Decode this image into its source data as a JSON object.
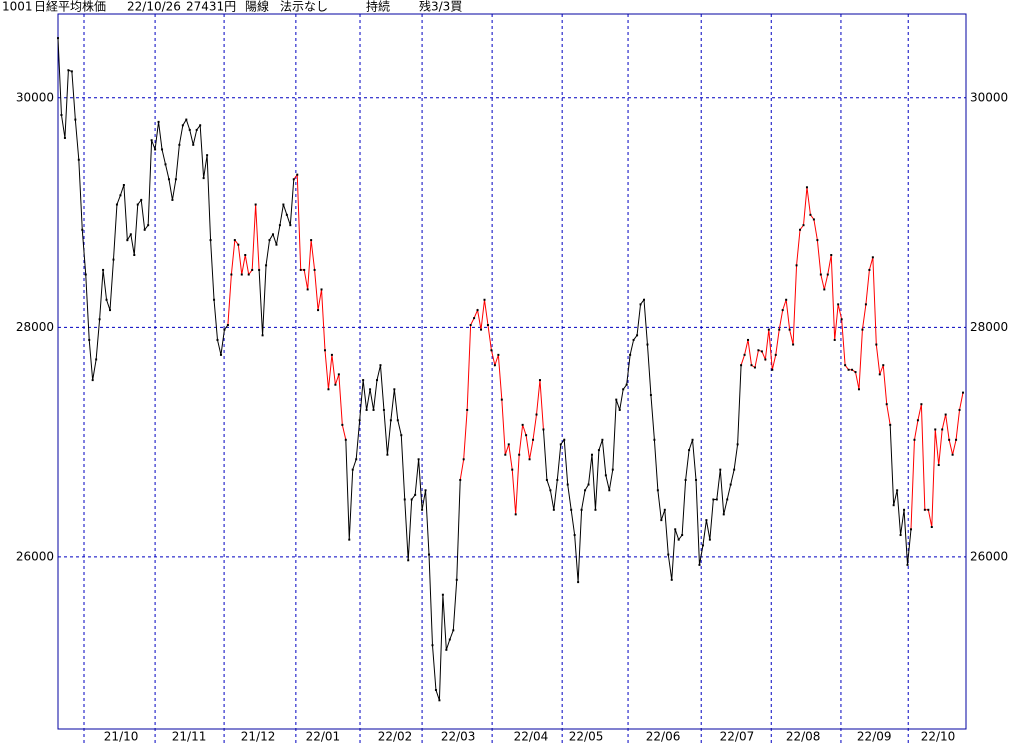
{
  "header": {
    "code": "1001",
    "name": "日経平均株価",
    "date": "22/10/26",
    "price": "27431円",
    "candle": "陽線",
    "signal": "法示なし",
    "state": "持続",
    "remain": "残3/3買"
  },
  "chart_data": {
    "type": "line",
    "xlim": [
      0,
      261
    ],
    "ylim": [
      24500,
      30730
    ],
    "yticks": [
      26000,
      28000,
      30000
    ],
    "xticks": [
      {
        "value": 18.2,
        "label": "21/10"
      },
      {
        "value": 37.8,
        "label": "21/11"
      },
      {
        "value": 57.7,
        "label": "21/12"
      },
      {
        "value": 76.4,
        "label": "22/01"
      },
      {
        "value": 97.2,
        "label": "22/02"
      },
      {
        "value": 115.4,
        "label": "22/03"
      },
      {
        "value": 136.4,
        "label": "22/04"
      },
      {
        "value": 152.3,
        "label": "22/05"
      },
      {
        "value": 174.5,
        "label": "22/06"
      },
      {
        "value": 195.8,
        "label": "22/07"
      },
      {
        "value": 214.9,
        "label": "22/08"
      },
      {
        "value": 235.4,
        "label": "22/09"
      },
      {
        "value": 253.8,
        "label": "22/10"
      }
    ],
    "month_boundaries": [
      7.5,
      28,
      47.9,
      68.6,
      87.1,
      105,
      125.2,
      145.4,
      164.4,
      185.5,
      205.7,
      225.8,
      245.2
    ],
    "grid": true,
    "frame_color": "#0000a0",
    "grid_color": "#0000c0",
    "dot_color": "#000000",
    "series": [
      {
        "color": "#000000",
        "start": 0,
        "values": [
          30520,
          29850,
          29650,
          30240,
          30230,
          29810,
          29460,
          28850,
          28460,
          27890,
          27540,
          27720,
          28070,
          28500,
          28240,
          28150,
          28590,
          29070,
          29150,
          29240,
          28760,
          28810,
          28630,
          29070,
          29110,
          28850,
          28890,
          29630,
          29550,
          29790,
          29550,
          29420,
          29290,
          29110,
          29290,
          29590,
          29760,
          29810,
          29720,
          29590,
          29720,
          29760,
          29300,
          29500,
          28760,
          28240,
          27890,
          27760,
          27980,
          28020
        ]
      },
      {
        "color": "#ff0000",
        "start": 49,
        "values": [
          28020,
          28460,
          28760,
          28720,
          28460,
          28630,
          28460,
          28500,
          29070,
          28500
        ]
      },
      {
        "color": "#000000",
        "start": 58,
        "values": [
          28500,
          27930,
          28540,
          28760,
          28810,
          28720,
          28890,
          29070,
          28980,
          28890,
          29290
        ]
      },
      {
        "color": "#ff0000",
        "start": 68,
        "values": [
          29290,
          29330,
          28500,
          28500,
          28330,
          28760,
          28500,
          28150,
          28330,
          27800,
          27460,
          27760,
          27500,
          27590,
          27150,
          27020
        ]
      },
      {
        "color": "#000000",
        "start": 83,
        "values": [
          27020,
          26150,
          26760,
          26850,
          27190,
          27540,
          27280,
          27460,
          27280,
          27540,
          27670,
          27280,
          26890,
          27190,
          27460,
          27190,
          27060,
          26500,
          25970,
          26500,
          26540,
          26850,
          26410,
          26580,
          26020,
          25230,
          24840,
          24750,
          25670,
          25190,
          25280,
          25360,
          25800,
          26670
        ]
      },
      {
        "color": "#ff0000",
        "start": 116,
        "values": [
          26670,
          26850,
          27280,
          28020,
          28080,
          28150,
          27980,
          28240,
          28020,
          27800,
          27670,
          27760,
          27370,
          26890,
          26980,
          26760,
          26370,
          26890,
          27150,
          27060,
          26850,
          27020,
          27240,
          27540,
          27110
        ]
      },
      {
        "color": "#000000",
        "start": 140,
        "values": [
          27110,
          26670,
          26580,
          26410,
          26670,
          26980,
          27020,
          26630,
          26410,
          26190,
          25780,
          26410,
          26580,
          26630,
          26890,
          26410,
          26930,
          27020,
          26710,
          26580,
          26760,
          27370,
          27280,
          27460,
          27500,
          27760,
          27890,
          27930,
          28200,
          28240,
          27850,
          27410,
          27020,
          26580,
          26320,
          26410,
          26020,
          25800,
          26240,
          26150,
          26190,
          26670,
          26930,
          27020,
          26670,
          25930,
          26100,
          26320,
          26150,
          26500,
          26500,
          26760,
          26370,
          26500,
          26630,
          26760,
          26980,
          27670
        ]
      },
      {
        "color": "#ff0000",
        "start": 197,
        "values": [
          27670,
          27760,
          27890,
          27670,
          27650,
          27800,
          27790,
          27720,
          27980,
          27630,
          27760,
          27980,
          28150,
          28240,
          27980,
          27850,
          28540,
          28850,
          28890,
          29220,
          28980,
          28940,
          28760,
          28460,
          28330,
          28460,
          28630,
          27890,
          28200,
          28070,
          27670,
          27630,
          27630,
          27610,
          27460,
          27980,
          28200,
          28500,
          28610,
          27850,
          27590,
          27670,
          27330,
          27150
        ]
      },
      {
        "color": "#000000",
        "start": 240,
        "values": [
          27150,
          26450,
          26580,
          26190,
          26410,
          25930,
          26240
        ]
      },
      {
        "color": "#ff0000",
        "start": 246,
        "values": [
          26240,
          27020,
          27190,
          27330,
          26410,
          26410,
          26260,
          27110,
          26800,
          27110,
          27240,
          27020,
          26890,
          27020,
          27280,
          27431
        ]
      }
    ]
  }
}
